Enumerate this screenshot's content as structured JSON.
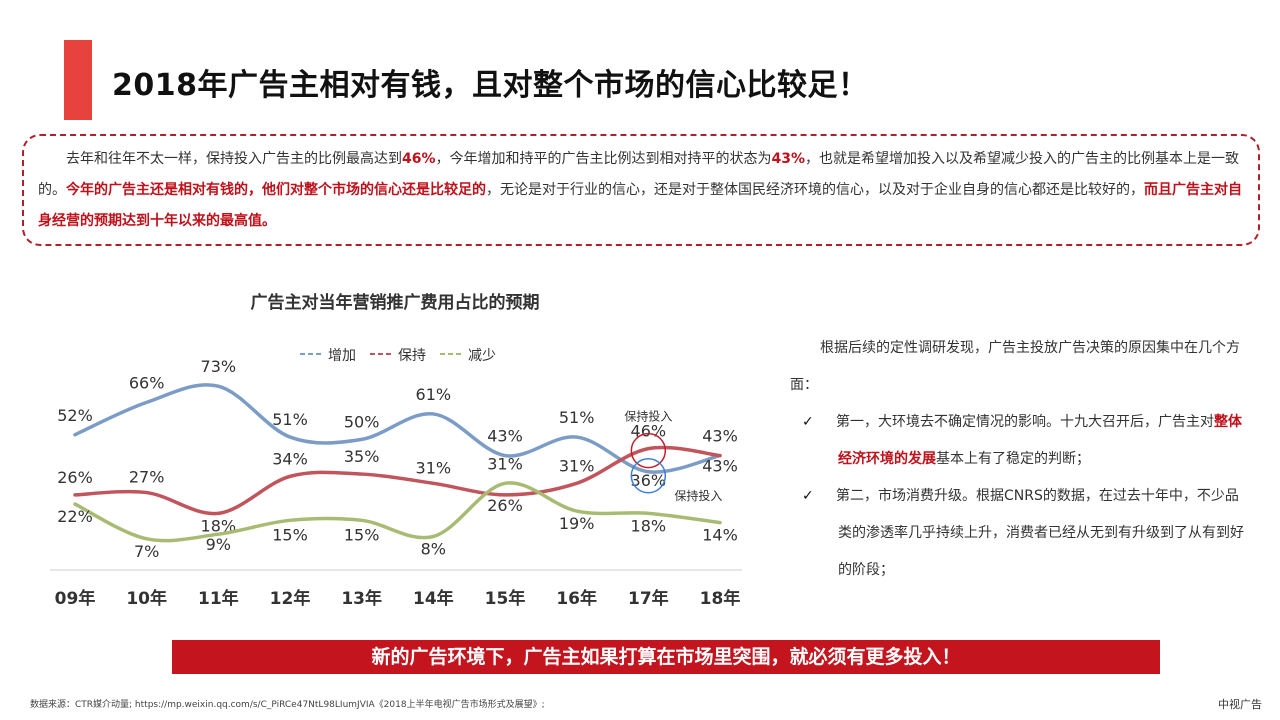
{
  "page": {
    "title": "2018年广告主相对有钱，且对整个市场的信心比较足！",
    "accent_color": "#e8423f"
  },
  "summary": {
    "s1": "去年和往年不太一样，保持投入广告主的比例最高达到",
    "s1_hl": "46%",
    "s2": "，今年增加和持平的广告主比例达到相对持平的状态为",
    "s2_hl": "43%",
    "s3": "，也就是希望增加投入以及希望减少投入的广告主的比例基本上是一致的。",
    "s3_hl": "今年的广告主还是相对有钱的，他们对整个市场的信心还是比较足的",
    "s4": "，无论是对于行业的信心，还是对于整体国民经济环境的信心，以及对于企业自身的信心都还是比较好的，",
    "s4_hl": "而且广告主对自身经营的预期达到十年以来的最高值。"
  },
  "chart_data": {
    "type": "line",
    "title": "广告主对当年营销推广费用占比的预期",
    "categories": [
      "09年",
      "10年",
      "11年",
      "12年",
      "13年",
      "14年",
      "15年",
      "16年",
      "17年",
      "18年"
    ],
    "series": [
      {
        "name": "增加",
        "color": "#7b9cc6",
        "values": [
          52,
          66,
          73,
          51,
          50,
          61,
          43,
          51,
          36,
          43
        ]
      },
      {
        "name": "保持",
        "color": "#c0555b",
        "values": [
          26,
          27,
          18,
          34,
          35,
          31,
          26,
          31,
          46,
          43
        ]
      },
      {
        "name": "减少",
        "color": "#a8bb73",
        "values": [
          22,
          7,
          9,
          15,
          15,
          8,
          31,
          19,
          18,
          14
        ]
      }
    ],
    "ylim": [
      0,
      80
    ],
    "grid": false,
    "legend": "top",
    "annotations": [
      "保持投入",
      "保持投入"
    ]
  },
  "right_panel": {
    "intro": "根据后续的定性调研发现，广告主投放广告决策的原因集中在几个方面：",
    "point1_a": "第一，大环境去不确定情况的影响。十九大召开后，广告主对",
    "point1_hl": "整体经济环境的发展",
    "point1_b": "基本上有了稳定的判断；",
    "point2": "第二，市场消费升级。根据CNRS的数据，在过去十年中，不少品类的渗透率几乎持续上升，消费者已经从无到有升级到了从有到好的阶段；",
    "check_glyph": "✓"
  },
  "banner": {
    "text": "新的广告环境下，广告主如果打算在市场里突围，就必须有更多投入！",
    "color": "#c4141e"
  },
  "footer": {
    "source": "数据来源：CTR媒介动量; https://mp.weixin.qq.com/s/C_PiRCe47NtL98LIumJVIA《2018上半年电视广告市场形式及展望》;",
    "brand": "中视广告"
  }
}
